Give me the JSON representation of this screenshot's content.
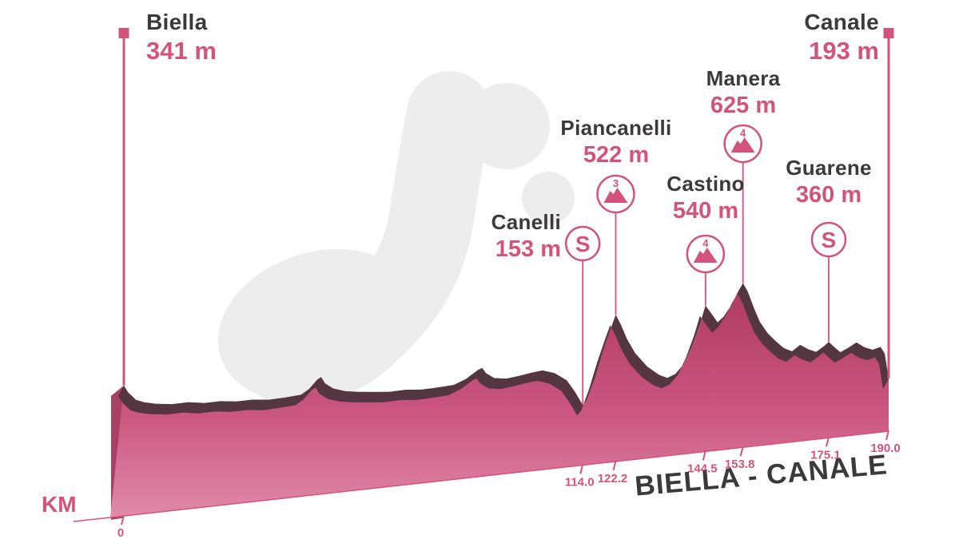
{
  "colors": {
    "accent": "#d4537a",
    "text_dark": "#3d383c",
    "ridge": "#533640",
    "side_face": "#a84062",
    "grad_top": "#b13c62",
    "grad_mid": "#cb5680",
    "grad_bottom": "#e391ae",
    "watermark": "#ededed"
  },
  "chart_data": {
    "type": "area",
    "title": "BIELLA - CANALE",
    "xlabel": "KM",
    "x_range": [
      0,
      190
    ],
    "y_range_m": [
      0,
      700
    ],
    "grid": false,
    "km_ticks": [
      {
        "km": 0,
        "label": "0"
      },
      {
        "km": 114.0,
        "label": "114.0"
      },
      {
        "km": 122.2,
        "label": "122.2"
      },
      {
        "km": 144.5,
        "label": "144.5"
      },
      {
        "km": 153.8,
        "label": "153.8"
      },
      {
        "km": 175.1,
        "label": "175.1"
      },
      {
        "km": 190.0,
        "label": "190.0"
      }
    ],
    "markers": [
      {
        "name": "Biella",
        "elev_label": "341 m",
        "elev_m": 341,
        "km": 0,
        "type": "start"
      },
      {
        "name": "Canelli",
        "elev_label": "153 m",
        "elev_m": 153,
        "km": 114.0,
        "type": "sprint",
        "icon": "S"
      },
      {
        "name": "Piancanelli",
        "elev_label": "522 m",
        "elev_m": 522,
        "km": 122.2,
        "type": "climb",
        "category": "3"
      },
      {
        "name": "Castino",
        "elev_label": "540 m",
        "elev_m": 540,
        "km": 144.5,
        "type": "climb",
        "category": "4"
      },
      {
        "name": "Manera",
        "elev_label": "625 m",
        "elev_m": 625,
        "km": 153.8,
        "type": "climb",
        "category": "4"
      },
      {
        "name": "Guarene",
        "elev_label": "360 m",
        "elev_m": 360,
        "km": 175.1,
        "type": "sprint",
        "icon": "S"
      },
      {
        "name": "Canale",
        "elev_label": "193 m",
        "elev_m": 193,
        "km": 190.0,
        "type": "finish"
      }
    ],
    "profile": [
      [
        0,
        341
      ],
      [
        1,
        312
      ],
      [
        3,
        278
      ],
      [
        5,
        266
      ],
      [
        8,
        257
      ],
      [
        12,
        252
      ],
      [
        16,
        256
      ],
      [
        20,
        249
      ],
      [
        24,
        253
      ],
      [
        28,
        248
      ],
      [
        32,
        252
      ],
      [
        36,
        248
      ],
      [
        40,
        253
      ],
      [
        44,
        261
      ],
      [
        46,
        283
      ],
      [
        48,
        320
      ],
      [
        49,
        330
      ],
      [
        50,
        303
      ],
      [
        52,
        280
      ],
      [
        55,
        266
      ],
      [
        58,
        260
      ],
      [
        62,
        256
      ],
      [
        66,
        253
      ],
      [
        70,
        258
      ],
      [
        74,
        255
      ],
      [
        78,
        260
      ],
      [
        82,
        267
      ],
      [
        85,
        289
      ],
      [
        88,
        324
      ],
      [
        89,
        331
      ],
      [
        90,
        308
      ],
      [
        92,
        286
      ],
      [
        95,
        281
      ],
      [
        98,
        289
      ],
      [
        101,
        299
      ],
      [
        104,
        307
      ],
      [
        107,
        293
      ],
      [
        110,
        260
      ],
      [
        112,
        212
      ],
      [
        114,
        153
      ],
      [
        115,
        172
      ],
      [
        117,
        262
      ],
      [
        119,
        372
      ],
      [
        121,
        468
      ],
      [
        122.2,
        522
      ],
      [
        123.5,
        478
      ],
      [
        125,
        418
      ],
      [
        127,
        358
      ],
      [
        130,
        299
      ],
      [
        133,
        261
      ],
      [
        135,
        247
      ],
      [
        137,
        261
      ],
      [
        139,
        299
      ],
      [
        141,
        368
      ],
      [
        143,
        458
      ],
      [
        144.5,
        540
      ],
      [
        146,
        504
      ],
      [
        147.5,
        467
      ],
      [
        149,
        489
      ],
      [
        151,
        538
      ],
      [
        152.5,
        588
      ],
      [
        153.8,
        625
      ],
      [
        155,
        588
      ],
      [
        156.5,
        519
      ],
      [
        158,
        459
      ],
      [
        160,
        409
      ],
      [
        162,
        374
      ],
      [
        164,
        344
      ],
      [
        166,
        329
      ],
      [
        168,
        354
      ],
      [
        170,
        334
      ],
      [
        172,
        321
      ],
      [
        174,
        344
      ],
      [
        175.1,
        360
      ],
      [
        176.5,
        337
      ],
      [
        178,
        314
      ],
      [
        180,
        331
      ],
      [
        182,
        351
      ],
      [
        184,
        329
      ],
      [
        186,
        317
      ],
      [
        188,
        327
      ],
      [
        189,
        298
      ],
      [
        190,
        193
      ]
    ]
  }
}
